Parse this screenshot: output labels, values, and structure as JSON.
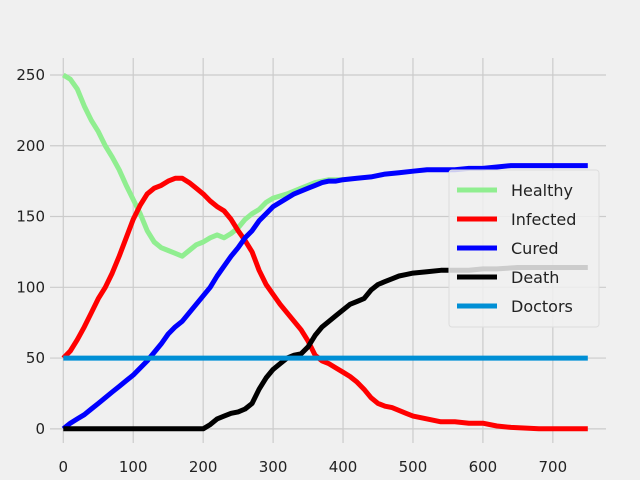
{
  "chart_data": {
    "type": "line",
    "title": "",
    "xlabel": "",
    "ylabel": "",
    "xlim": [
      -19,
      776
    ],
    "ylim": [
      -10,
      262
    ],
    "xticks": [
      0,
      100,
      200,
      300,
      400,
      500,
      600,
      700
    ],
    "yticks": [
      0,
      50,
      100,
      150,
      200,
      250
    ],
    "grid": true,
    "legend_position": "center-right",
    "series": [
      {
        "name": "Healthy",
        "color": "#90ee90",
        "x": [
          0,
          10,
          20,
          30,
          40,
          50,
          60,
          70,
          80,
          90,
          100,
          110,
          120,
          130,
          140,
          150,
          160,
          170,
          180,
          190,
          200,
          210,
          220,
          230,
          240,
          250,
          260,
          270,
          280,
          290,
          300,
          320,
          340,
          360,
          380,
          400
        ],
        "y": [
          250,
          247,
          240,
          228,
          218,
          210,
          200,
          192,
          183,
          172,
          162,
          152,
          140,
          132,
          128,
          126,
          124,
          122,
          126,
          130,
          132,
          135,
          137,
          135,
          138,
          142,
          148,
          152,
          155,
          160,
          163,
          166,
          170,
          174,
          176,
          176
        ]
      },
      {
        "name": "Infected",
        "color": "#ff0000",
        "x": [
          0,
          10,
          20,
          30,
          40,
          50,
          60,
          70,
          80,
          90,
          100,
          110,
          120,
          130,
          140,
          150,
          160,
          170,
          180,
          190,
          200,
          210,
          220,
          230,
          240,
          250,
          260,
          270,
          280,
          290,
          300,
          310,
          320,
          330,
          340,
          350,
          360,
          370,
          380,
          390,
          400,
          410,
          420,
          430,
          440,
          450,
          460,
          470,
          480,
          490,
          500,
          520,
          540,
          560,
          580,
          600,
          620,
          640,
          680,
          720,
          750
        ],
        "y": [
          50,
          55,
          63,
          72,
          82,
          92,
          100,
          110,
          122,
          135,
          148,
          158,
          166,
          170,
          172,
          175,
          177,
          177,
          174,
          170,
          166,
          161,
          157,
          154,
          148,
          140,
          133,
          125,
          112,
          102,
          95,
          88,
          82,
          76,
          70,
          62,
          52,
          48,
          46,
          43,
          40,
          37,
          33,
          28,
          22,
          18,
          16,
          15,
          13,
          11,
          9,
          7,
          5,
          5,
          4,
          4,
          2,
          1,
          0,
          0,
          0
        ]
      },
      {
        "name": "Cured",
        "color": "#0000ff",
        "x": [
          0,
          10,
          20,
          30,
          40,
          50,
          60,
          70,
          80,
          90,
          100,
          110,
          120,
          130,
          140,
          150,
          160,
          170,
          180,
          190,
          200,
          210,
          220,
          230,
          240,
          250,
          260,
          270,
          280,
          290,
          300,
          310,
          320,
          330,
          340,
          350,
          360,
          370,
          380,
          390,
          400,
          420,
          440,
          460,
          480,
          500,
          520,
          540,
          560,
          580,
          600,
          620,
          640,
          680,
          720,
          750
        ],
        "y": [
          0,
          4,
          7,
          10,
          14,
          18,
          22,
          26,
          30,
          34,
          38,
          43,
          48,
          54,
          60,
          67,
          72,
          76,
          82,
          88,
          94,
          100,
          108,
          115,
          122,
          128,
          135,
          140,
          147,
          152,
          157,
          160,
          163,
          166,
          168,
          170,
          172,
          174,
          175,
          175,
          176,
          177,
          178,
          180,
          181,
          182,
          183,
          183,
          183,
          184,
          184,
          185,
          186,
          186,
          186,
          186
        ]
      },
      {
        "name": "Death",
        "color": "#000000",
        "x": [
          0,
          50,
          100,
          150,
          180,
          200,
          210,
          220,
          230,
          240,
          250,
          260,
          270,
          280,
          290,
          300,
          310,
          320,
          330,
          340,
          350,
          360,
          370,
          380,
          390,
          400,
          410,
          420,
          430,
          440,
          450,
          460,
          470,
          480,
          490,
          500,
          520,
          540,
          560,
          580,
          600,
          620,
          650,
          700,
          750
        ],
        "y": [
          0,
          0,
          0,
          0,
          0,
          0,
          3,
          7,
          9,
          11,
          12,
          14,
          18,
          28,
          36,
          42,
          46,
          50,
          52,
          53,
          58,
          66,
          72,
          76,
          80,
          84,
          88,
          90,
          92,
          98,
          102,
          104,
          106,
          108,
          109,
          110,
          111,
          112,
          112,
          112,
          113,
          113,
          114,
          114,
          114
        ]
      },
      {
        "name": "Doctors",
        "color": "#008fd5",
        "x": [
          0,
          750
        ],
        "y": [
          50,
          50
        ]
      }
    ]
  }
}
